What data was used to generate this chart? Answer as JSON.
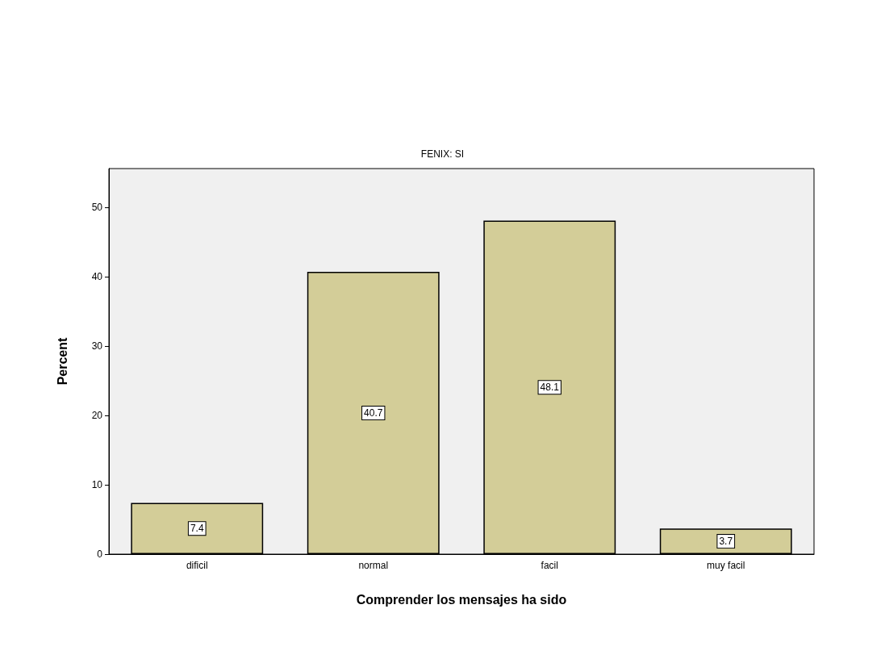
{
  "chart_data": {
    "type": "bar",
    "title": "FENIX: SI",
    "xlabel": "Comprender los mensajes ha sido",
    "ylabel": "Percent",
    "categories": [
      "dificil",
      "normal",
      "facil",
      "muy facil"
    ],
    "values": [
      7.4,
      40.7,
      48.1,
      3.7
    ],
    "color": "#d3cd98",
    "ylim": [
      0,
      55.6
    ],
    "yticks": [
      0,
      10,
      20,
      30,
      40,
      50
    ],
    "data_labels": true,
    "grid": false
  }
}
